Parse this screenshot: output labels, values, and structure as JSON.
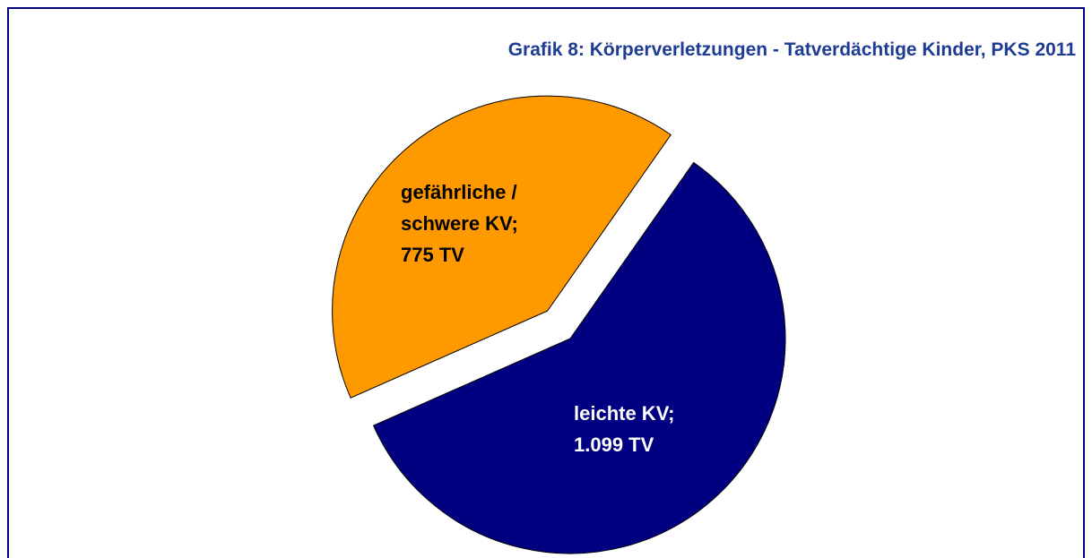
{
  "chart_data": {
    "type": "pie",
    "title": "Grafik 8: Körperverletzungen - Tatverdächtige Kinder, PKS 2011",
    "categories": [
      "leichte KV;",
      "gefährliche / schwere KV;"
    ],
    "values": [
      1099,
      775
    ],
    "value_labels": [
      "1.099 TV",
      "775 TV"
    ],
    "colors": [
      "#000080",
      "#ff9900"
    ],
    "label_colors": [
      "#ffffff",
      "#000000"
    ]
  }
}
